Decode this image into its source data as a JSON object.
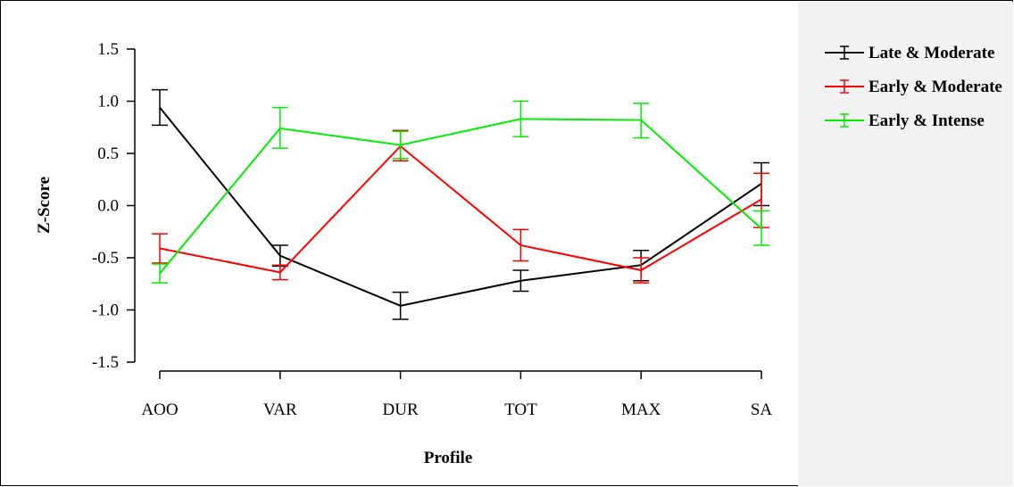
{
  "chart_data": {
    "type": "line",
    "xlabel": "Profile",
    "ylabel": "Z-Score",
    "categories": [
      "AOO",
      "VAR",
      "DUR",
      "TOT",
      "MAX",
      "SA"
    ],
    "ylim": [
      -1.5,
      1.5
    ],
    "yticks": [
      "1.5",
      "1.0",
      "0.5",
      "0.0",
      "-0.5",
      "-1.0",
      "-1.5"
    ],
    "ytick_values": [
      1.5,
      1.0,
      0.5,
      0.0,
      -0.5,
      -1.0,
      -1.5
    ],
    "grid": false,
    "legend_position": "right",
    "series": [
      {
        "name": "Late & Moderate",
        "color": "#000000",
        "values": [
          0.94,
          -0.48,
          -0.96,
          -0.72,
          -0.57,
          0.21
        ],
        "err_low": [
          0.77,
          -0.58,
          -1.09,
          -0.82,
          -0.72,
          0.0
        ],
        "err_high": [
          1.11,
          -0.38,
          -0.83,
          -0.62,
          -0.43,
          0.41
        ]
      },
      {
        "name": "Early & Moderate",
        "color": "#ff0000",
        "values": [
          -0.41,
          -0.64,
          0.57,
          -0.38,
          -0.62,
          0.06
        ],
        "err_low": [
          -0.55,
          -0.71,
          0.43,
          -0.53,
          -0.74,
          -0.21
        ],
        "err_high": [
          -0.27,
          -0.57,
          0.72,
          -0.23,
          -0.5,
          0.31
        ]
      },
      {
        "name": "Early & Intense",
        "color": "#00ee00",
        "values": [
          -0.65,
          0.74,
          0.58,
          0.83,
          0.82,
          -0.22
        ],
        "err_low": [
          -0.74,
          0.55,
          0.45,
          0.66,
          0.65,
          -0.38
        ],
        "err_high": [
          -0.56,
          0.94,
          0.71,
          1.0,
          0.98,
          -0.05
        ]
      }
    ]
  }
}
